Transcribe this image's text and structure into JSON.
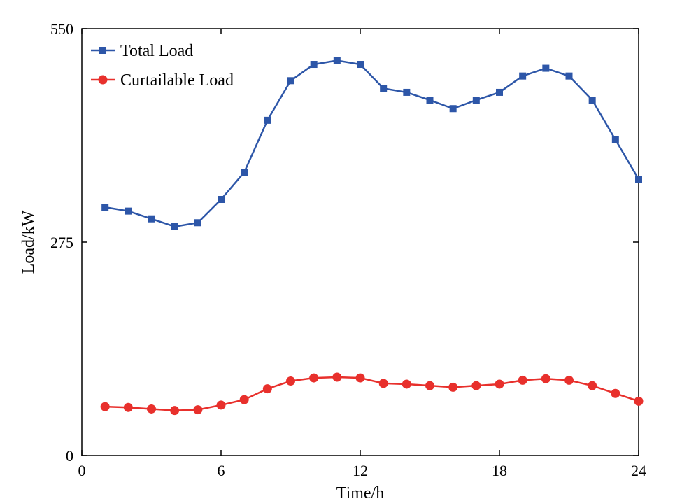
{
  "chart_data": {
    "type": "line",
    "title": "",
    "xlabel": "Time/h",
    "ylabel": "Load/kW",
    "xlim": [
      0,
      24
    ],
    "ylim": [
      0,
      550
    ],
    "xticks": [
      0,
      6,
      12,
      18,
      24
    ],
    "yticks": [
      0,
      275,
      550
    ],
    "grid": false,
    "legend": "top-left",
    "x": [
      1,
      2,
      3,
      4,
      5,
      6,
      7,
      8,
      9,
      10,
      11,
      12,
      13,
      14,
      15,
      16,
      17,
      18,
      19,
      20,
      21,
      22,
      23,
      24
    ],
    "series": [
      {
        "name": "Total Load",
        "color": "#2d56a8",
        "marker": "square",
        "values": [
          320,
          315,
          305,
          295,
          300,
          330,
          365,
          432,
          483,
          504,
          509,
          504,
          473,
          468,
          458,
          447,
          458,
          468,
          489,
          499,
          489,
          458,
          407,
          356
        ]
      },
      {
        "name": "Curtailable Load",
        "color": "#e8302c",
        "marker": "circle",
        "values": [
          63,
          62,
          60,
          58,
          59,
          65,
          72,
          86,
          96,
          100,
          101,
          100,
          93,
          92,
          90,
          88,
          90,
          92,
          97,
          99,
          97,
          90,
          80,
          70
        ]
      }
    ]
  }
}
